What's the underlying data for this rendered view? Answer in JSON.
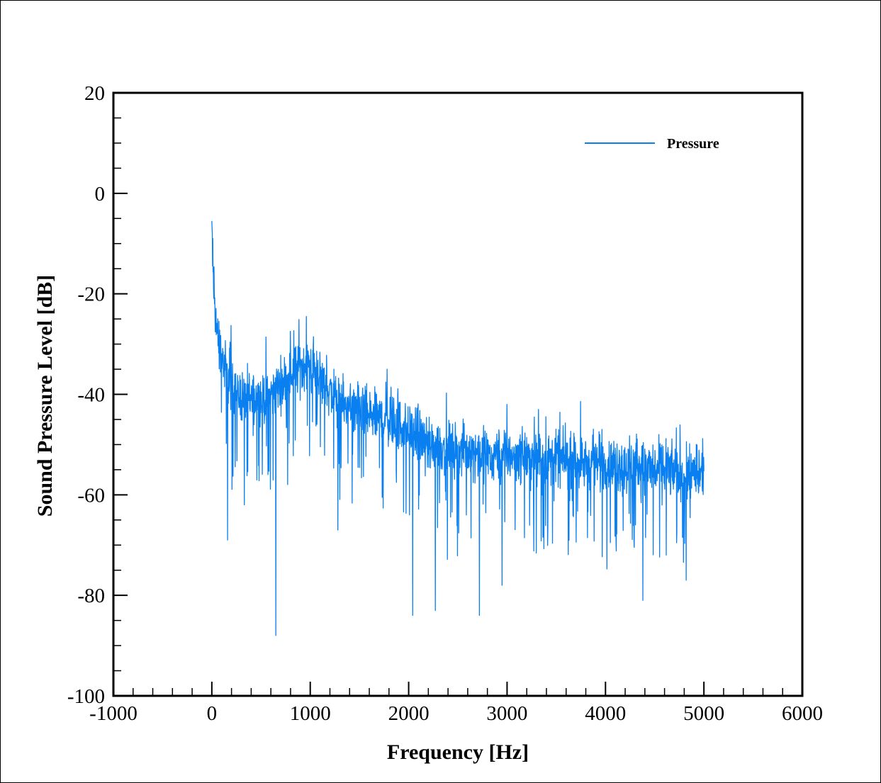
{
  "chart_data": {
    "type": "line",
    "title": "",
    "xlabel": "Frequency [Hz]",
    "ylabel": "Sound Pressure Level [dB]",
    "xlim": [
      -1000,
      6000
    ],
    "ylim": [
      -100,
      20
    ],
    "x_ticks": [
      -1000,
      0,
      1000,
      2000,
      3000,
      4000,
      5000,
      6000
    ],
    "x_tick_labels": [
      "-1000",
      "0",
      "1000",
      "2000",
      "3000",
      "4000",
      "5000",
      "6000"
    ],
    "y_ticks": [
      -100,
      -80,
      -60,
      -40,
      -20,
      0,
      20
    ],
    "y_tick_labels": [
      "-100",
      "-80",
      "-60",
      "-40",
      "-20",
      "0",
      "20"
    ],
    "x_minor_step": 200,
    "y_minor_step": 5,
    "grid": false,
    "legend_position": "top-right",
    "series": [
      {
        "name": "Pressure",
        "color": "#0a7ff0",
        "x_start": 0,
        "x_end": 5000,
        "points": 2000,
        "trend": [
          [
            0,
            -6
          ],
          [
            15,
            -18
          ],
          [
            40,
            -25
          ],
          [
            80,
            -31
          ],
          [
            150,
            -36
          ],
          [
            250,
            -40
          ],
          [
            400,
            -41
          ],
          [
            550,
            -41
          ],
          [
            650,
            -39
          ],
          [
            800,
            -36
          ],
          [
            950,
            -34
          ],
          [
            1050,
            -35
          ],
          [
            1150,
            -38
          ],
          [
            1300,
            -42
          ],
          [
            1500,
            -44
          ],
          [
            1800,
            -45
          ],
          [
            2000,
            -47
          ],
          [
            2200,
            -50
          ],
          [
            2500,
            -51
          ],
          [
            3000,
            -52
          ],
          [
            3500,
            -53
          ],
          [
            4000,
            -54
          ],
          [
            4500,
            -55
          ],
          [
            5000,
            -56
          ]
        ],
        "dips": [
          [
            160,
            -69
          ],
          [
            330,
            -62
          ],
          [
            650,
            -88
          ],
          [
            1280,
            -67
          ],
          [
            2040,
            -84
          ],
          [
            2270,
            -83
          ],
          [
            2720,
            -84
          ],
          [
            2950,
            -78
          ],
          [
            4380,
            -81
          ],
          [
            4820,
            -77
          ]
        ],
        "peaks": [
          [
            0,
            -5.5
          ],
          [
            960,
            -24.5
          ],
          [
            1780,
            -35
          ],
          [
            3000,
            -42
          ],
          [
            3320,
            -43
          ]
        ]
      }
    ]
  }
}
